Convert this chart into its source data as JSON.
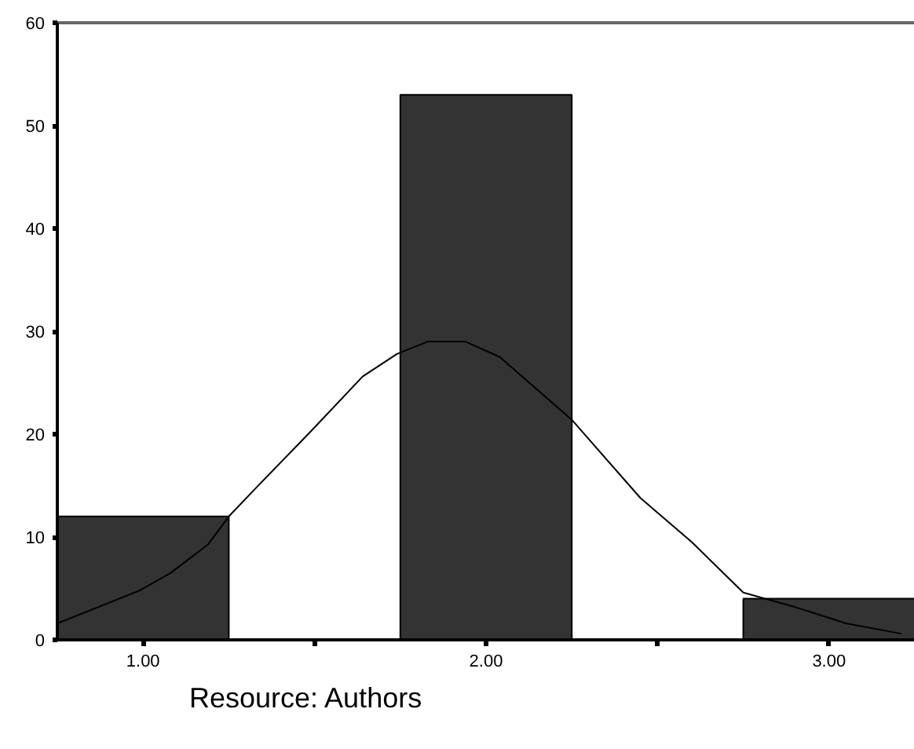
{
  "chart_data": {
    "type": "histogram",
    "bins": [
      0.75,
      1.25,
      1.75,
      2.25,
      2.75,
      3.25
    ],
    "values": [
      12,
      0,
      53,
      0,
      4
    ],
    "color": "#333333",
    "series": [
      {
        "type": "line",
        "color": "#000000",
        "x": [
          0.75,
          0.99,
          1.08,
          1.19,
          1.25,
          1.33,
          1.49,
          1.64,
          1.74,
          1.83,
          1.94,
          2.04,
          2.25,
          2.45,
          2.6,
          2.75,
          2.9,
          3.05,
          3.21
        ],
        "values": [
          1.6,
          4.8,
          6.5,
          9.3,
          12,
          14.8,
          20.3,
          25.6,
          27.8,
          29,
          29,
          27.5,
          21.4,
          13.8,
          9.5,
          4.6,
          3.2,
          1.6,
          0.6
        ]
      }
    ],
    "xlim": [
      0.75,
      3.25
    ],
    "ylim": [
      0,
      60
    ],
    "xticks": [
      {
        "value": 1,
        "label": "1.00"
      },
      {
        "value": 1.5,
        "label": null
      },
      {
        "value": 2,
        "label": "2.00"
      },
      {
        "value": 2.5,
        "label": null
      },
      {
        "value": 3,
        "label": "3.00"
      }
    ],
    "yticks": [
      0,
      10,
      20,
      30,
      40,
      50,
      60
    ],
    "grid": false,
    "annotations": [
      "Resource: Authors"
    ]
  }
}
